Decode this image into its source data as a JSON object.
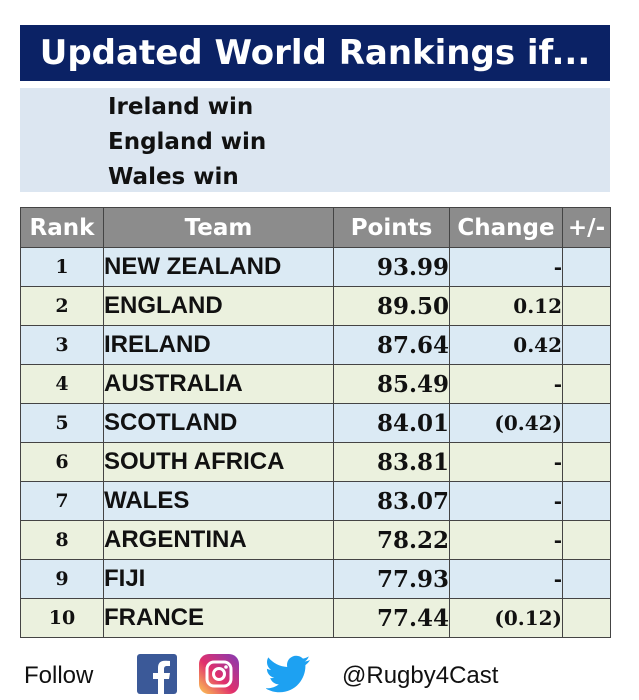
{
  "title": "Updated World Rankings if...",
  "scenarios": [
    "Ireland win",
    "England win",
    "Wales win"
  ],
  "table": {
    "headers": {
      "rank": "Rank",
      "team": "Team",
      "points": "Points",
      "change": "Change",
      "plus_minus": "+/-"
    },
    "rows": [
      {
        "rank": "1",
        "team": "NEW ZEALAND",
        "points": "93.99",
        "change": "-",
        "plus_minus": ""
      },
      {
        "rank": "2",
        "team": "ENGLAND",
        "points": "89.50",
        "change": "0.12",
        "plus_minus": ""
      },
      {
        "rank": "3",
        "team": "IRELAND",
        "points": "87.64",
        "change": "0.42",
        "plus_minus": ""
      },
      {
        "rank": "4",
        "team": "AUSTRALIA",
        "points": "85.49",
        "change": "-",
        "plus_minus": ""
      },
      {
        "rank": "5",
        "team": "SCOTLAND",
        "points": "84.01",
        "change": "(0.42)",
        "plus_minus": ""
      },
      {
        "rank": "6",
        "team": "SOUTH AFRICA",
        "points": "83.81",
        "change": "-",
        "plus_minus": ""
      },
      {
        "rank": "7",
        "team": "WALES",
        "points": "83.07",
        "change": "-",
        "plus_minus": ""
      },
      {
        "rank": "8",
        "team": "ARGENTINA",
        "points": "78.22",
        "change": "-",
        "plus_minus": ""
      },
      {
        "rank": "9",
        "team": "FIJI",
        "points": "77.93",
        "change": "-",
        "plus_minus": ""
      },
      {
        "rank": "10",
        "team": "FRANCE",
        "points": "77.44",
        "change": "(0.12)",
        "plus_minus": ""
      }
    ]
  },
  "footer": {
    "follow_label": "Follow",
    "icons": [
      "facebook-icon",
      "instagram-icon",
      "twitter-icon"
    ],
    "handle": "@Rugby4Cast"
  },
  "colors": {
    "title_bg": "#0b2265",
    "scenario_bg": "#dce6f1",
    "header_bg": "#8c8c8c",
    "row_blue": "#dbeaf4",
    "row_green": "#ebf1de",
    "facebook": "#3b5998",
    "twitter": "#1da1f2"
  }
}
